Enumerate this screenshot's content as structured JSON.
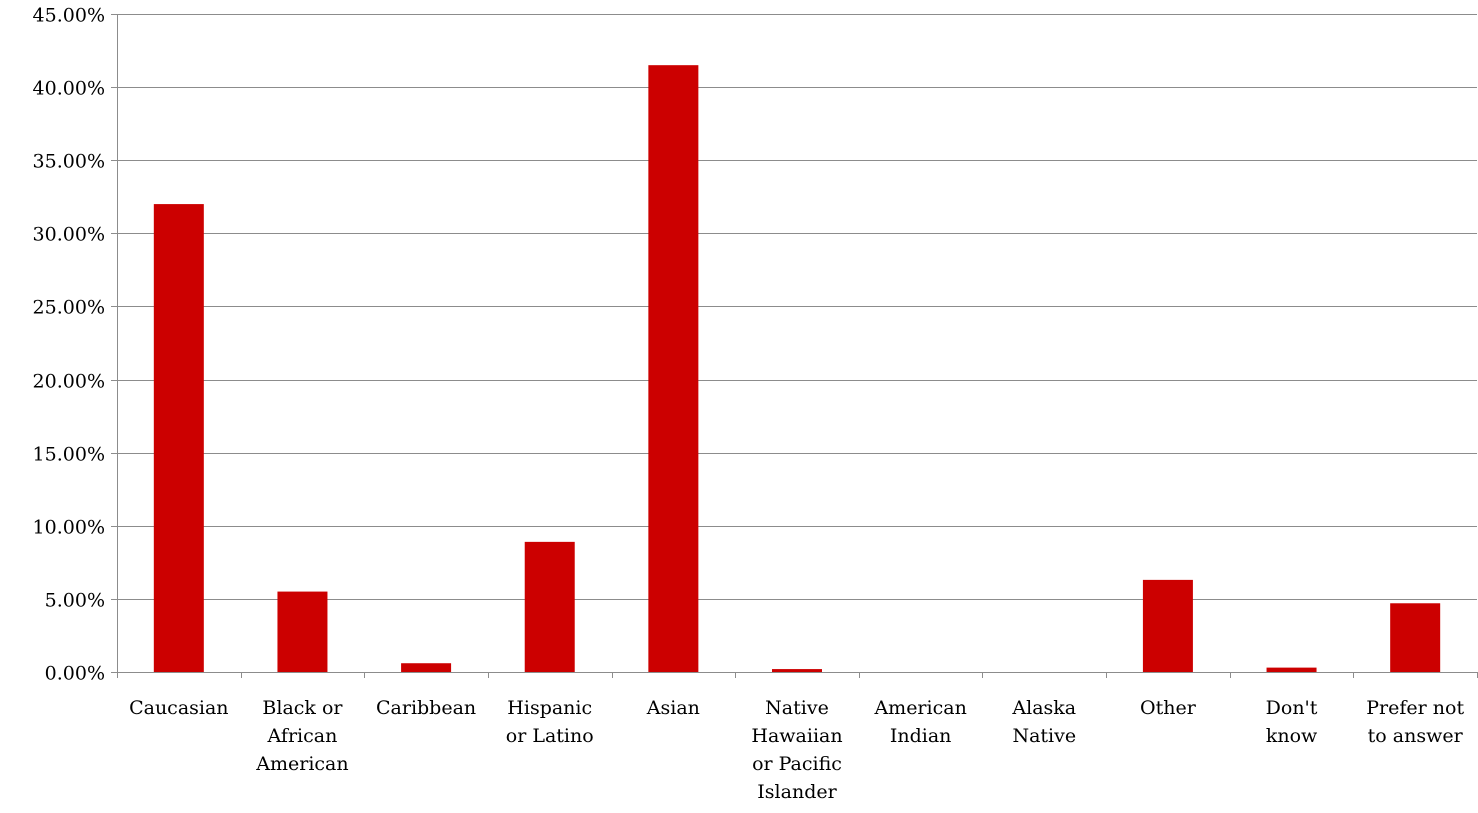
{
  "chart_data": {
    "type": "bar",
    "title": "",
    "xlabel": "",
    "ylabel": "",
    "ylim": [
      0,
      45
    ],
    "y_ticks": [
      "0.00%",
      "5.00%",
      "10.00%",
      "15.00%",
      "20.00%",
      "25.00%",
      "30.00%",
      "35.00%",
      "40.00%",
      "45.00%"
    ],
    "y_tick_values": [
      0,
      5,
      10,
      15,
      20,
      25,
      30,
      35,
      40,
      45
    ],
    "grid": true,
    "legend": "none",
    "bar_color": "#cc0000",
    "categories": [
      [
        "Caucasian"
      ],
      [
        "Black or",
        "African",
        "American"
      ],
      [
        "Caribbean"
      ],
      [
        "Hispanic",
        "or Latino"
      ],
      [
        "Asian"
      ],
      [
        "Native",
        "Hawaiian",
        "or Pacific",
        "Islander"
      ],
      [
        "American",
        "Indian"
      ],
      [
        "Alaska",
        "Native"
      ],
      [
        "Other"
      ],
      [
        "Don't",
        "know"
      ],
      [
        "Prefer not",
        "to answer"
      ]
    ],
    "values": [
      32.0,
      5.5,
      0.6,
      8.9,
      41.5,
      0.2,
      0.0,
      0.0,
      6.3,
      0.3,
      4.7
    ]
  }
}
